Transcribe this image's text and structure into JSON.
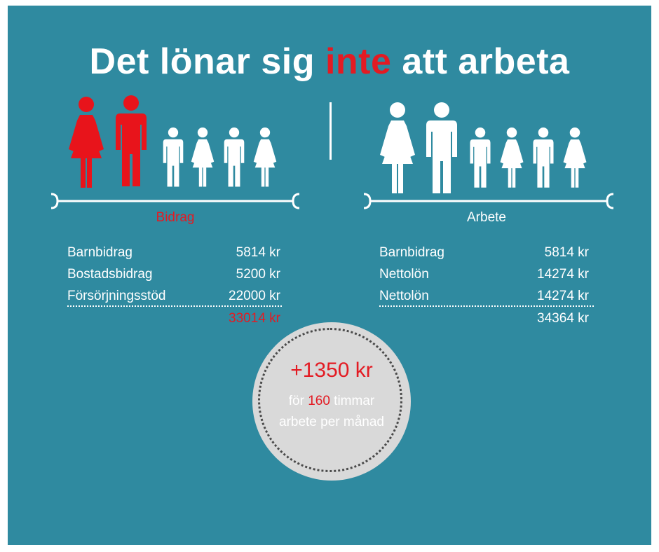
{
  "title": {
    "before": "Det lönar sig ",
    "highlight": "inte",
    "after": " att arbeta"
  },
  "colors": {
    "panel": "#2f8aa0",
    "accent": "#e31b23",
    "figure": "#ffffff",
    "circle": "#d9d9d9"
  },
  "left": {
    "label": "Bidrag",
    "rows": [
      {
        "label": "Barnbidrag",
        "value": "5814 kr"
      },
      {
        "label": "Bostadsbidrag",
        "value": "5200 kr"
      },
      {
        "label": "Försörjningsstöd",
        "value": "22000 kr"
      }
    ],
    "total": "33014 kr"
  },
  "right": {
    "label": "Arbete",
    "rows": [
      {
        "label": "Barnbidrag",
        "value": "5814 kr"
      },
      {
        "label": "Nettolön",
        "value": "14274 kr"
      },
      {
        "label": "Nettolön",
        "value": "14274 kr"
      }
    ],
    "total": "34364 kr"
  },
  "circle": {
    "amount": "+1350 kr",
    "line1_pre": "för ",
    "hours": "160",
    "line1_post": " timmar",
    "line2": "arbete per månad"
  }
}
